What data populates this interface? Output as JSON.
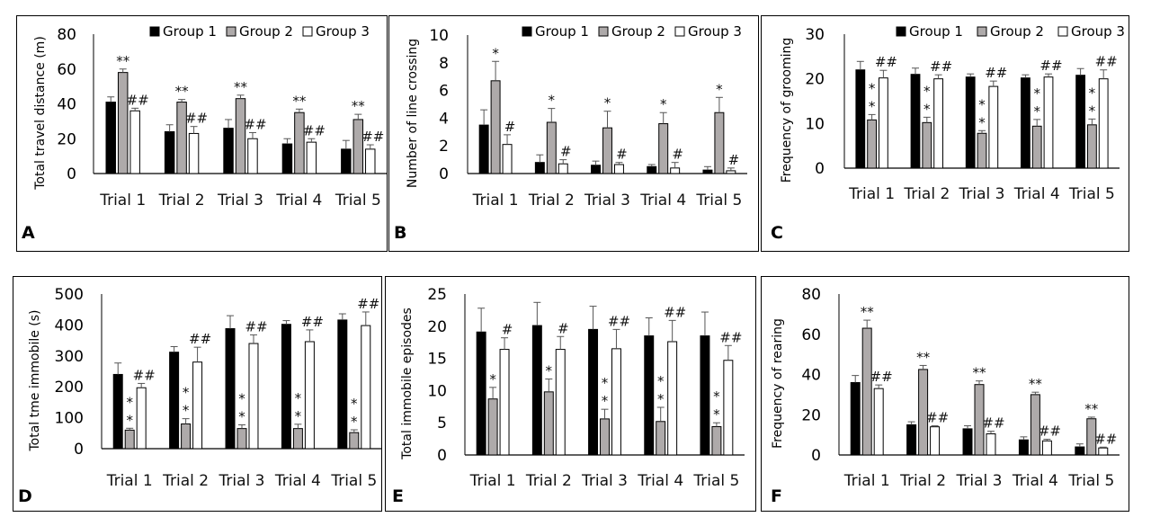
{
  "colors": {
    "group1": "#000000",
    "group2": "#aeaaaa",
    "group3": "#ffffff",
    "axis": "#000000",
    "error": "#555555"
  },
  "chart_data": [
    {
      "id": "A",
      "type": "bar",
      "panel_label": "A",
      "ylabel": "Total travel distance (m)",
      "ylim": [
        0,
        80
      ],
      "yticks": [
        0,
        20,
        40,
        60,
        80
      ],
      "categories": [
        "Trial 1",
        "Trial 2",
        "Trial 3",
        "Trial 4",
        "Trial 5"
      ],
      "legend": {
        "show": true,
        "placement": "top-right",
        "entries": [
          "Group 1",
          "Group 2",
          "Group 3"
        ]
      },
      "series": [
        {
          "name": "Group 1",
          "values": [
            41,
            24,
            26,
            17,
            14
          ],
          "errors": [
            3,
            4,
            5,
            3,
            5
          ]
        },
        {
          "name": "Group 2",
          "values": [
            58,
            41,
            43,
            35,
            31
          ],
          "errors": [
            2,
            1.5,
            2,
            2,
            3
          ]
        },
        {
          "name": "Group 3",
          "values": [
            36,
            23,
            20,
            18,
            14
          ],
          "errors": [
            1.5,
            4,
            3.5,
            2,
            2.5
          ]
        }
      ],
      "annotations": [
        {
          "series": 1,
          "labels": [
            "**",
            "**",
            "**",
            "**",
            "**"
          ],
          "position": "above"
        },
        {
          "series": 2,
          "labels": [
            "##",
            "##",
            "##",
            "##",
            "##"
          ],
          "position": "above"
        }
      ]
    },
    {
      "id": "B",
      "type": "bar",
      "panel_label": "B",
      "ylabel": "Number of line crossing",
      "ylim": [
        0,
        10
      ],
      "yticks": [
        0,
        2,
        4,
        6,
        8,
        10
      ],
      "categories": [
        "Trial 1",
        "Trial 2",
        "Trial 3",
        "Trial 4",
        "Trial 5"
      ],
      "legend": {
        "show": true,
        "placement": "top-right",
        "entries": [
          "Group 1",
          "Group 2",
          "Group 3"
        ]
      },
      "series": [
        {
          "name": "Group 1",
          "values": [
            3.5,
            0.8,
            0.6,
            0.5,
            0.25
          ],
          "errors": [
            1.1,
            0.55,
            0.3,
            0.15,
            0.25
          ]
        },
        {
          "name": "Group 2",
          "values": [
            6.7,
            3.7,
            3.3,
            3.6,
            4.4
          ],
          "errors": [
            1.4,
            1.0,
            1.2,
            0.8,
            1.1
          ]
        },
        {
          "name": "Group 3",
          "values": [
            2.1,
            0.7,
            0.65,
            0.4,
            0.2
          ],
          "errors": [
            0.7,
            0.3,
            0.15,
            0.4,
            0.2
          ]
        }
      ],
      "annotations": [
        {
          "series": 1,
          "labels": [
            "*",
            "*",
            "*",
            "*",
            "*"
          ],
          "position": "above"
        },
        {
          "series": 2,
          "labels": [
            "#",
            "#",
            "#",
            "#",
            "#"
          ],
          "position": "above"
        }
      ]
    },
    {
      "id": "C",
      "type": "bar",
      "panel_label": "C",
      "ylabel": "Frequency of grooming",
      "ylim": [
        0,
        30
      ],
      "yticks": [
        0,
        10,
        20,
        30
      ],
      "categories": [
        "Trial 1",
        "Trial 2",
        "Trial 3",
        "Trial 4",
        "Trial 5"
      ],
      "legend": {
        "show": true,
        "placement": "top-right",
        "entries": [
          "Group 1",
          "Group 2",
          "Group 3"
        ]
      },
      "series": [
        {
          "name": "Group 1",
          "values": [
            22,
            21,
            20.4,
            20.2,
            20.8
          ],
          "errors": [
            1.9,
            1.4,
            0.7,
            0.7,
            1.5
          ]
        },
        {
          "name": "Group 2",
          "values": [
            10.8,
            10.2,
            7.8,
            9.4,
            9.7
          ],
          "errors": [
            1.2,
            1.2,
            0.6,
            1.5,
            1.3
          ]
        },
        {
          "name": "Group 3",
          "values": [
            20.2,
            20,
            18.3,
            20.4,
            20
          ],
          "errors": [
            1.7,
            0.9,
            1.2,
            0.7,
            2.0
          ]
        }
      ],
      "annotations": [
        {
          "series": 1,
          "labels": [
            "**",
            "**",
            "**",
            "**",
            "**"
          ],
          "position": "stacked-above"
        },
        {
          "series": 2,
          "labels": [
            "##",
            "##",
            "##",
            "##",
            "##"
          ],
          "position": "above"
        }
      ]
    },
    {
      "id": "D",
      "type": "bar",
      "panel_label": "D",
      "ylabel": "Total tme immobile (s)",
      "ylim": [
        0,
        500
      ],
      "yticks": [
        0,
        100,
        200,
        300,
        400,
        500
      ],
      "categories": [
        "Trial 1",
        "Trial 2",
        "Trial 3",
        "Trial 4",
        "Trial 5"
      ],
      "legend": {
        "show": false
      },
      "series": [
        {
          "name": "Group 1",
          "values": [
            240,
            312,
            388,
            402,
            416
          ],
          "errors": [
            37,
            18,
            42,
            12,
            20
          ]
        },
        {
          "name": "Group 2",
          "values": [
            60,
            80,
            65,
            65,
            52
          ],
          "errors": [
            6,
            17,
            12,
            14,
            9
          ]
        },
        {
          "name": "Group 3",
          "values": [
            197,
            280,
            340,
            346,
            398
          ],
          "errors": [
            14,
            48,
            28,
            38,
            44
          ]
        }
      ],
      "annotations": [
        {
          "series": 1,
          "labels": [
            "**",
            "**",
            "**",
            "**",
            "**"
          ],
          "position": "stacked-above"
        },
        {
          "series": 2,
          "labels": [
            "##",
            "##",
            "##",
            "##",
            "##"
          ],
          "position": "above"
        }
      ]
    },
    {
      "id": "E",
      "type": "bar",
      "panel_label": "E",
      "ylabel": "Total immobile episodes",
      "ylim": [
        0,
        25
      ],
      "yticks": [
        0,
        5,
        10,
        15,
        20,
        25
      ],
      "categories": [
        "Trial 1",
        "Trial 2",
        "Trial 3",
        "Trial 4",
        "Trial 5"
      ],
      "legend": {
        "show": false
      },
      "series": [
        {
          "name": "Group 1",
          "values": [
            19.1,
            20.1,
            19.5,
            18.5,
            18.5
          ],
          "errors": [
            3.7,
            3.6,
            3.6,
            2.8,
            3.7
          ]
        },
        {
          "name": "Group 2",
          "values": [
            8.7,
            9.8,
            5.6,
            5.2,
            4.4
          ],
          "errors": [
            1.8,
            2.0,
            1.5,
            2.2,
            0.6
          ]
        },
        {
          "name": "Group 3",
          "values": [
            16.4,
            16.4,
            16.5,
            17.6,
            14.7
          ],
          "errors": [
            1.8,
            2.0,
            3.0,
            3.3,
            2.3
          ]
        }
      ],
      "annotations": [
        {
          "series": 1,
          "labels": [
            "*",
            "*",
            "**",
            "**",
            "**"
          ],
          "position": "stacked-above"
        },
        {
          "series": 2,
          "labels": [
            "#",
            "#",
            "##",
            "##",
            "##"
          ],
          "position": "above"
        }
      ]
    },
    {
      "id": "F",
      "type": "bar",
      "panel_label": "F",
      "ylabel": "Frequency of rearing",
      "ylim": [
        0,
        80
      ],
      "yticks": [
        0,
        20,
        40,
        60,
        80
      ],
      "categories": [
        "Trial 1",
        "Trial 2",
        "Trial 3",
        "Trial 4",
        "Trial 5"
      ],
      "legend": {
        "show": false
      },
      "series": [
        {
          "name": "Group 1",
          "values": [
            36,
            15,
            13,
            7.5,
            4
          ],
          "errors": [
            3.5,
            1.5,
            1.5,
            1.5,
            1.5
          ]
        },
        {
          "name": "Group 2",
          "values": [
            63,
            42.5,
            35,
            30,
            18
          ],
          "errors": [
            4,
            2,
            1.8,
            1.2,
            0.8
          ]
        },
        {
          "name": "Group 3",
          "values": [
            33,
            14,
            10.5,
            7,
            3.5
          ],
          "errors": [
            1.8,
            0.5,
            1.3,
            0.8,
            0.4
          ]
        }
      ],
      "annotations": [
        {
          "series": 1,
          "labels": [
            "**",
            "**",
            "**",
            "**",
            "**"
          ],
          "position": "above"
        },
        {
          "series": 2,
          "labels": [
            "##",
            "##",
            "##",
            "##",
            "##"
          ],
          "position": "above"
        }
      ]
    }
  ]
}
